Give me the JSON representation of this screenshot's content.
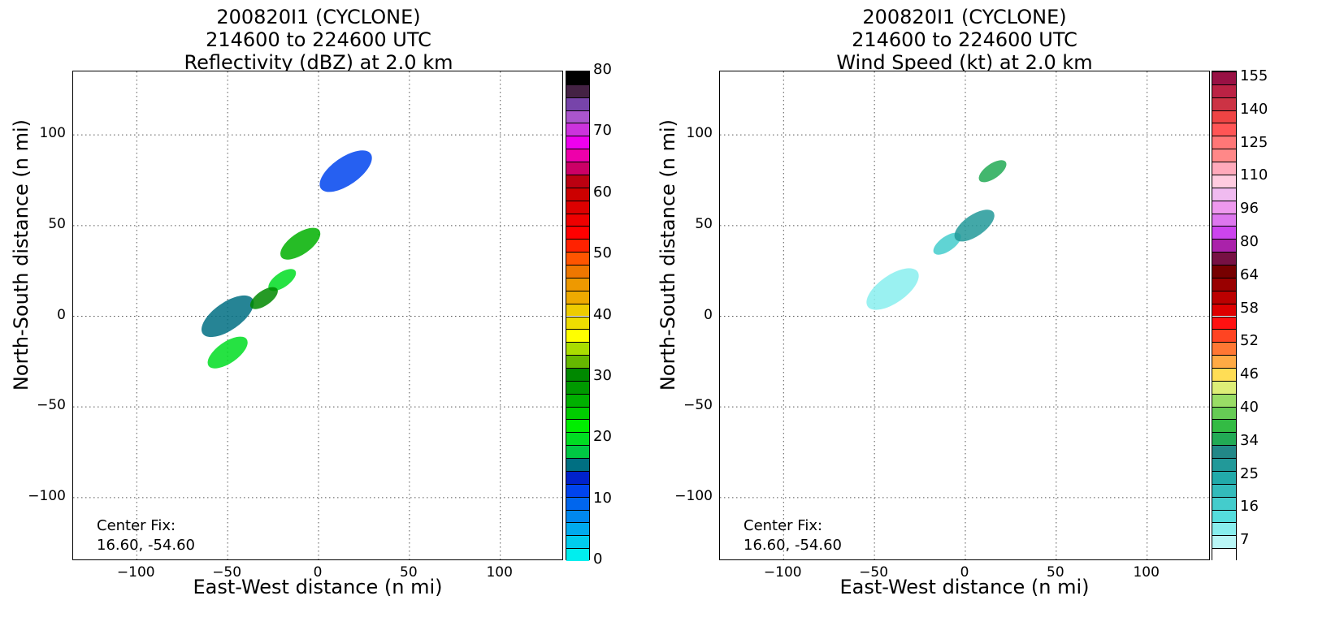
{
  "chart_data": [
    {
      "type": "heatmap",
      "title_lines": [
        "200820I1 (CYCLONE)",
        "214600 to 224600 UTC",
        "Reflectivity (dBZ) at 2.0 km"
      ],
      "xlabel": "East-West distance (n mi)",
      "ylabel": "North-South distance (n mi)",
      "xlim": [
        -135,
        135
      ],
      "ylim": [
        -135,
        135
      ],
      "xticks": [
        -100,
        -50,
        0,
        50,
        100
      ],
      "yticks": [
        -100,
        -50,
        0,
        50,
        100
      ],
      "xtick_labels": [
        "−100",
        "−50",
        "0",
        "50",
        "100"
      ],
      "ytick_labels": [
        "−100",
        "−50",
        "0",
        "50",
        "100"
      ],
      "grid": true,
      "annotation": "Center Fix:\n16.60, -54.60",
      "colorbar": {
        "min": 0,
        "max": 80,
        "tick_values": [
          0,
          10,
          20,
          30,
          40,
          50,
          60,
          70,
          80
        ],
        "tick_labels": [
          "0",
          "10",
          "20",
          "30",
          "40",
          "50",
          "60",
          "70",
          "80"
        ],
        "colors": [
          "#00eeee",
          "#00ccee",
          "#00aaee",
          "#0088ee",
          "#0066ee",
          "#0044ee",
          "#0022cc",
          "#006f82",
          "#00c844",
          "#00dd22",
          "#00ee00",
          "#00cc00",
          "#00b000",
          "#009900",
          "#008800",
          "#66b800",
          "#aadd00",
          "#ffff00",
          "#eedd00",
          "#eecc00",
          "#eeaa00",
          "#ee9900",
          "#ee7700",
          "#ff5500",
          "#ff2200",
          "#ff0000",
          "#ee0000",
          "#dd0000",
          "#cc0000",
          "#bb0011",
          "#cc0066",
          "#ee00aa",
          "#ee00ee",
          "#cc33dd",
          "#aa55cc",
          "#7744aa",
          "#442244",
          "#000000"
        ]
      },
      "field": {
        "region_description": "reflectivity echoes along a SW–NE band",
        "cells": [
          {
            "x": -20,
            "y": 20,
            "dbz": 20
          },
          {
            "x": -10,
            "y": 40,
            "dbz": 25
          },
          {
            "x": -50,
            "y": 0,
            "dbz": 15
          },
          {
            "x": -30,
            "y": 10,
            "dbz": 30
          },
          {
            "x": -50,
            "y": -20,
            "dbz": 20
          },
          {
            "x": 15,
            "y": 80,
            "dbz": 10
          }
        ]
      }
    },
    {
      "type": "heatmap",
      "title_lines": [
        "200820I1 (CYCLONE)",
        "214600 to 224600 UTC",
        "Wind Speed (kt) at 2.0 km"
      ],
      "xlabel": "East-West distance (n mi)",
      "ylabel": "North-South distance (n mi)",
      "xlim": [
        -135,
        135
      ],
      "ylim": [
        -135,
        135
      ],
      "xticks": [
        -100,
        -50,
        0,
        50,
        100
      ],
      "yticks": [
        -100,
        -50,
        0,
        50,
        100
      ],
      "xtick_labels": [
        "−100",
        "−50",
        "0",
        "50",
        "100"
      ],
      "ytick_labels": [
        "−100",
        "−50",
        "0",
        "50",
        "100"
      ],
      "grid": true,
      "annotation": "Center Fix:\n16.60, -54.60",
      "colorbar": {
        "tick_labels": [
          "7",
          "16",
          "25",
          "34",
          "40",
          "46",
          "52",
          "58",
          "64",
          "80",
          "96",
          "110",
          "125",
          "140",
          "155"
        ],
        "colors": [
          "#ffffff",
          "#b9f6f6",
          "#88eeee",
          "#55dddd",
          "#44cccc",
          "#33bbbb",
          "#22aaaa",
          "#229999",
          "#228888",
          "#22aa55",
          "#33bb44",
          "#66cc55",
          "#99dd66",
          "#ddee77",
          "#ffdd55",
          "#ffaa44",
          "#ff7733",
          "#ff4422",
          "#ff1111",
          "#dd0000",
          "#bb0000",
          "#990000",
          "#770000",
          "#771144",
          "#aa22aa",
          "#cc44ee",
          "#dd77ee",
          "#ee99ee",
          "#f0bbf0",
          "#ffcce0",
          "#ffaabb",
          "#ff8888",
          "#ff7777",
          "#ff5555",
          "#ee4444",
          "#cc3344",
          "#bb2244",
          "#991144"
        ]
      },
      "field": {
        "region_description": "wind speed field concentrated NE of center",
        "cells": [
          {
            "x": -10,
            "y": 40,
            "kt": 16
          },
          {
            "x": 5,
            "y": 50,
            "kt": 30
          },
          {
            "x": -40,
            "y": 15,
            "kt": 7
          },
          {
            "x": 15,
            "y": 80,
            "kt": 40
          }
        ]
      }
    }
  ]
}
